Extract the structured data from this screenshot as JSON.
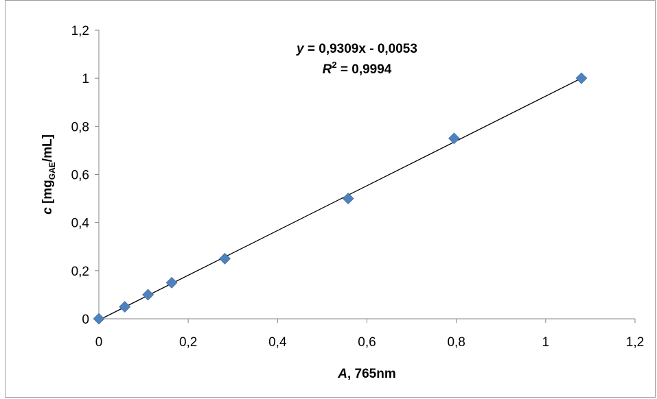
{
  "chart_data": {
    "type": "scatter",
    "xlabel": {
      "italic": "A",
      "rest": ", 765nm"
    },
    "ylabel": {
      "italic": "c",
      "before_sub": " [mg",
      "sub": "GAE",
      "after_sub": "/mL]"
    },
    "xlim": [
      0,
      1.2
    ],
    "ylim": [
      0,
      1.2
    ],
    "xticks": [
      0,
      0.2,
      0.4,
      0.6,
      0.8,
      1,
      1.2
    ],
    "yticks": [
      0,
      0.2,
      0.4,
      0.6,
      0.8,
      1,
      1.2
    ],
    "xtick_labels": [
      "0",
      "0,2",
      "0,4",
      "0,6",
      "0,8",
      "1",
      "1,2"
    ],
    "ytick_labels": [
      "0",
      "0,2",
      "0,4",
      "0,6",
      "0,8",
      "1",
      "1,2"
    ],
    "grid": false,
    "series": [
      {
        "marker": "diamond",
        "color": "#4f81bd",
        "points": [
          {
            "x": 0,
            "y": 0
          },
          {
            "x": 0.058,
            "y": 0.05
          },
          {
            "x": 0.11,
            "y": 0.1
          },
          {
            "x": 0.163,
            "y": 0.15
          },
          {
            "x": 0.282,
            "y": 0.25
          },
          {
            "x": 0.558,
            "y": 0.5
          },
          {
            "x": 0.795,
            "y": 0.75
          },
          {
            "x": 1.08,
            "y": 1.0
          }
        ]
      }
    ],
    "trendline": {
      "type": "linear",
      "slope": 0.9309,
      "intercept": -0.0053,
      "x_range": [
        0,
        1.08
      ],
      "color": "#000000",
      "equation": {
        "lhs": "y",
        "rhs": " = 0,9309x - 0,0053"
      },
      "r_squared": {
        "lhs": "R",
        "sup": "2",
        "rhs": " = 0,9994"
      }
    }
  }
}
